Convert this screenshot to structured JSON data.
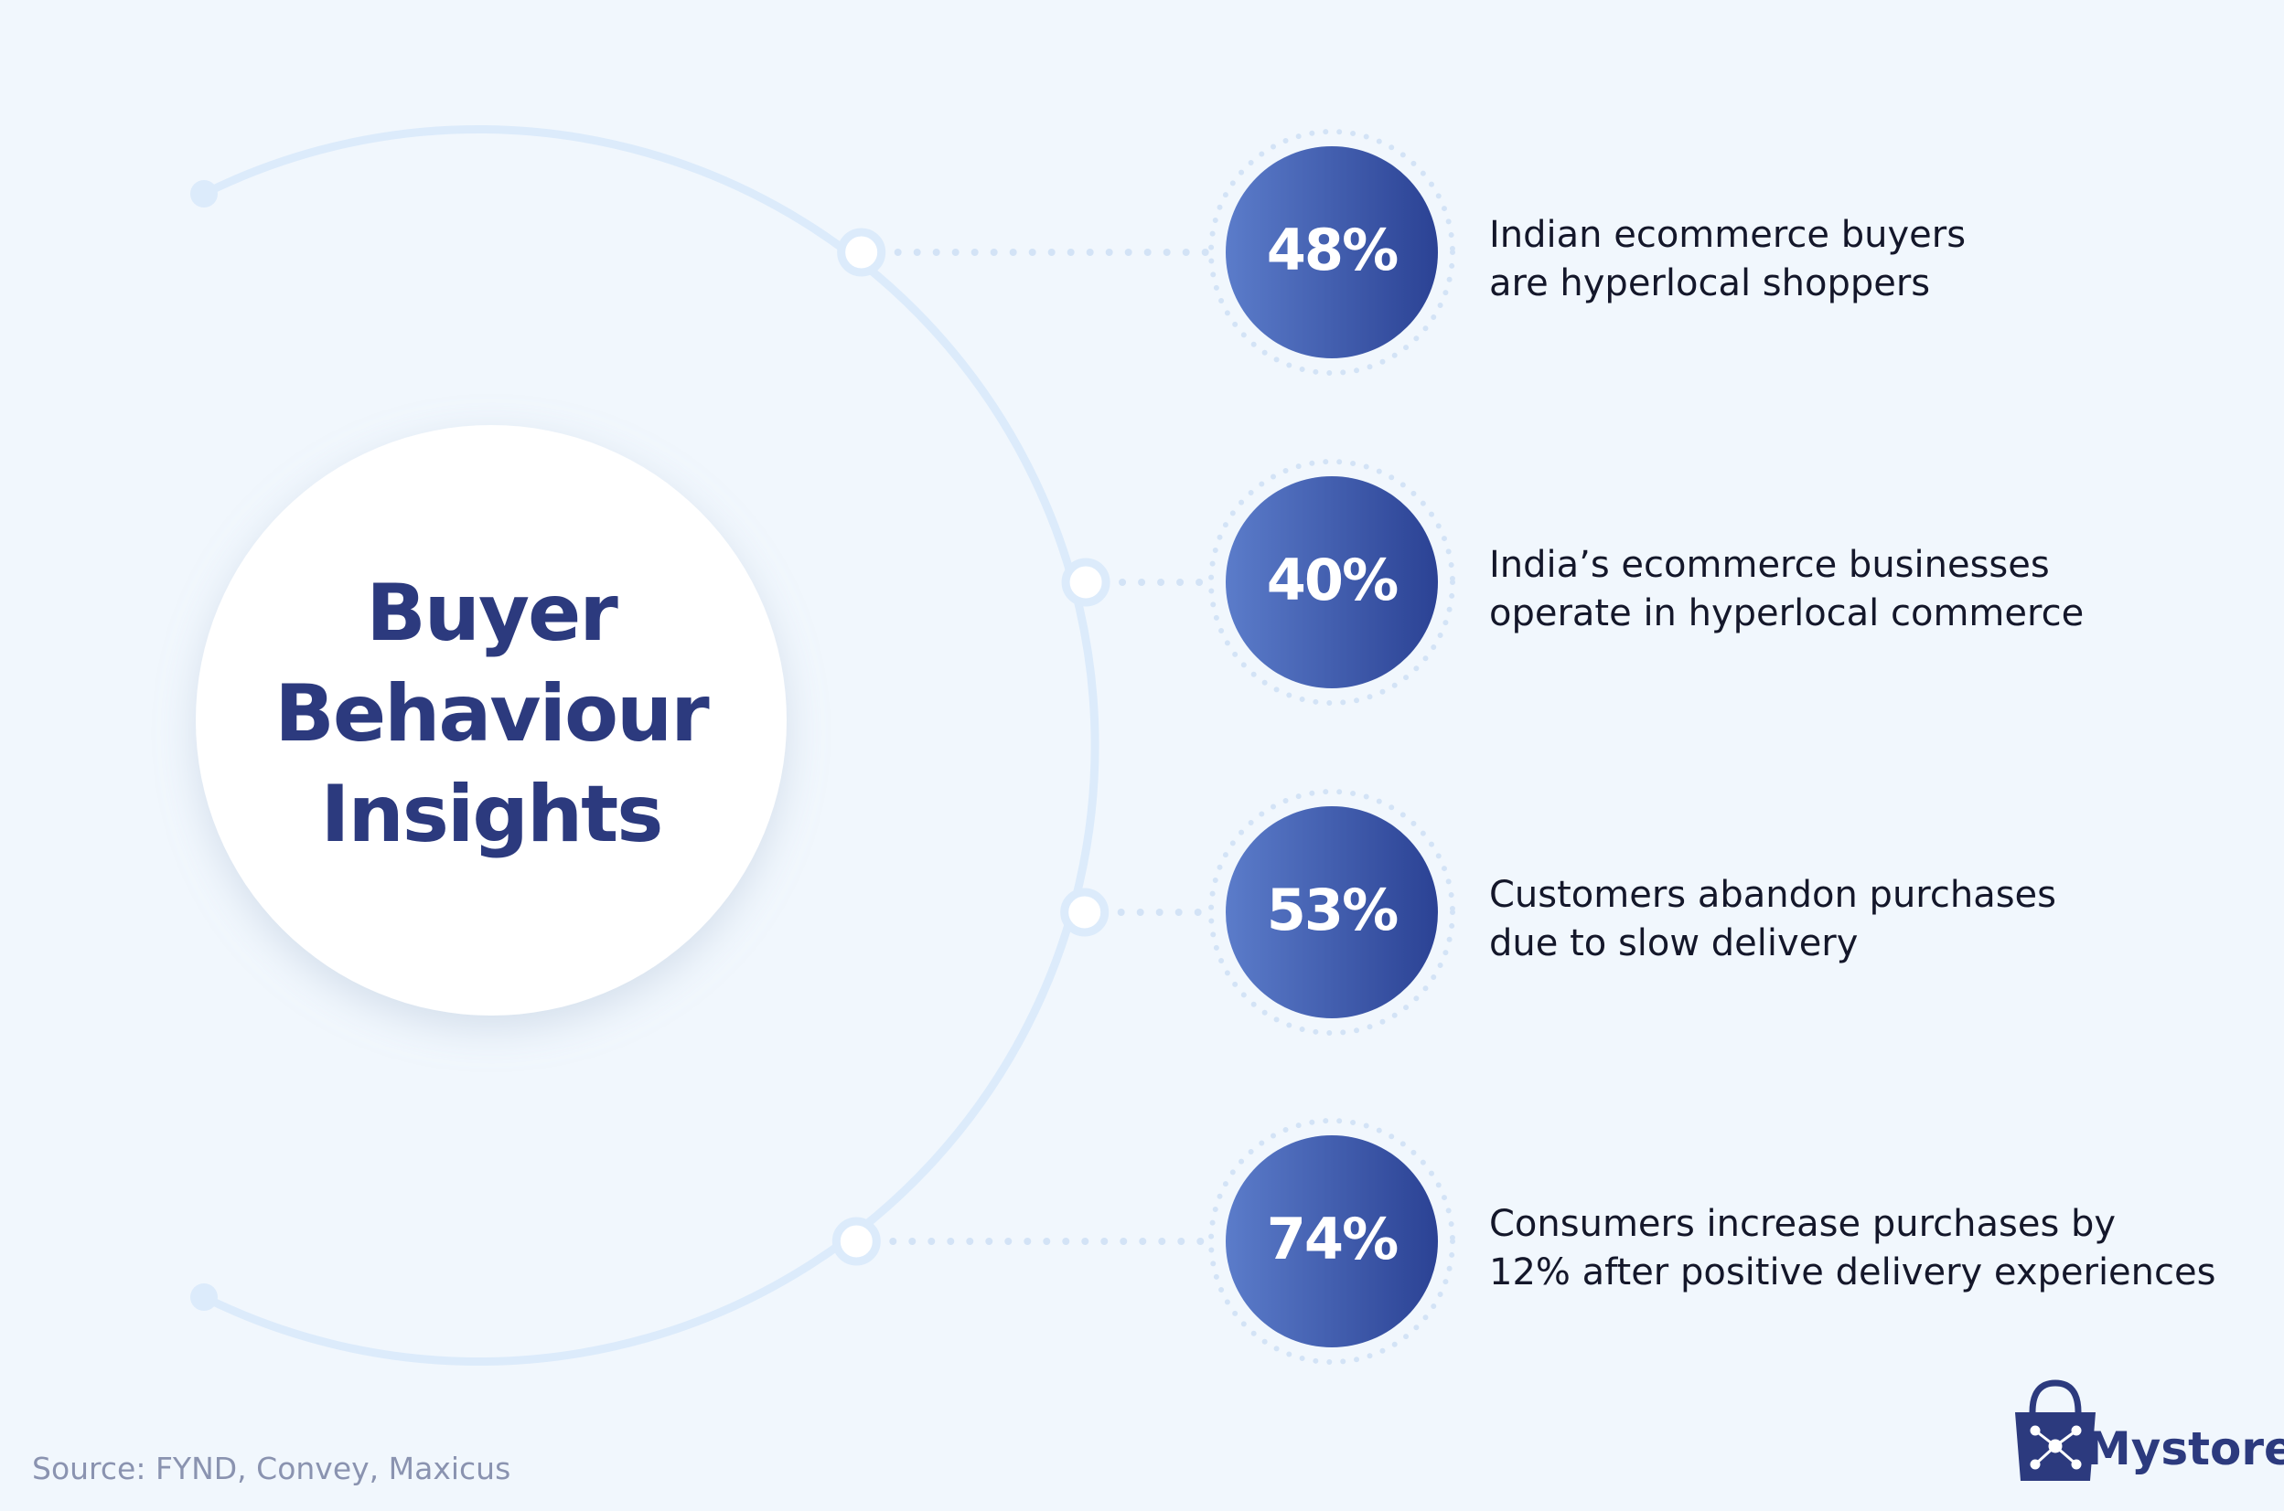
{
  "header": {
    "title_lines": [
      "Buyer",
      "Behaviour",
      "Insights"
    ]
  },
  "stats": [
    {
      "value": "48%",
      "lines": [
        "Indian ecommerce buyers",
        "are hyperlocal shoppers"
      ]
    },
    {
      "value": "40%",
      "lines": [
        "India’s ecommerce businesses",
        "operate in hyperlocal commerce"
      ]
    },
    {
      "value": "53%",
      "lines": [
        "Customers abandon purchases",
        "due to slow delivery"
      ]
    },
    {
      "value": "74%",
      "lines": [
        "Consumers increase purchases by",
        "12% after positive delivery experiences"
      ]
    }
  ],
  "footer": {
    "source": "Source: FYND, Convey, Maxicus",
    "brand": "Mystore"
  }
}
